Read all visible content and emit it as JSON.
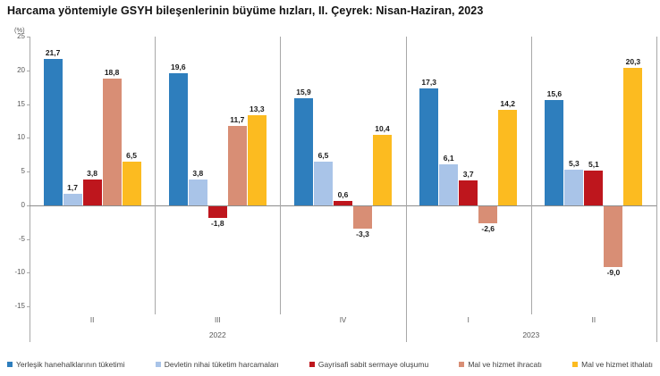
{
  "title": "Harcama yöntemiyle GSYH bileşenlerinin büyüme hızları, II. Çeyrek: Nisan-Haziran, 2023",
  "chart_data": {
    "type": "bar",
    "title": "Harcama yöntemiyle GSYH bileşenlerinin büyüme hızları, II. Çeyrek: Nisan-Haziran, 2023",
    "xlabel": "",
    "ylabel": "(%)",
    "ylim": [
      -15,
      25
    ],
    "ytick_interval": 5,
    "y_ticks": [
      "25",
      "20",
      "15",
      "10",
      "5",
      "0",
      "-5",
      "-10",
      "-15"
    ],
    "grid": false,
    "legend_position": "bottom",
    "categories": [
      "II",
      "III",
      "IV",
      "I",
      "II"
    ],
    "year_sections": [
      {
        "label": "2022",
        "group_start": 0,
        "group_count": 3
      },
      {
        "label": "2023",
        "group_start": 3,
        "group_count": 2
      }
    ],
    "series": [
      {
        "name": "Yerleşik hanehalklarının tüketimi",
        "color": "#2e7ebd",
        "values": [
          21.7,
          19.6,
          15.9,
          17.3,
          15.6
        ],
        "labels": [
          "21,7",
          "19,6",
          "15,9",
          "17,3",
          "15,6"
        ]
      },
      {
        "name": "Devletin nihai tüketim harcamaları",
        "color": "#a9c4e8",
        "values": [
          1.7,
          3.8,
          6.5,
          6.1,
          5.3
        ],
        "labels": [
          "1,7",
          "3,8",
          "6,5",
          "6,1",
          "5,3"
        ]
      },
      {
        "name": "Gayrisafi sabit sermaye oluşumu",
        "color": "#be161d",
        "values": [
          3.8,
          -1.8,
          0.6,
          3.7,
          5.1
        ],
        "labels": [
          "3,8",
          "-1,8",
          "0,6",
          "3,7",
          "5,1"
        ]
      },
      {
        "name": "Mal ve hizmet ihracatı",
        "color": "#d88e75",
        "values": [
          18.8,
          11.7,
          -3.3,
          -2.6,
          -9.0
        ],
        "labels": [
          "18,8",
          "11,7",
          "-3,3",
          "-2,6",
          "-9,0"
        ]
      },
      {
        "name": "Mal ve hizmet ithalatı",
        "color": "#fcbb20",
        "values": [
          6.5,
          13.3,
          10.4,
          14.2,
          20.3
        ],
        "labels": [
          "6,5",
          "13,3",
          "10,4",
          "14,2",
          "20,3"
        ]
      }
    ]
  }
}
